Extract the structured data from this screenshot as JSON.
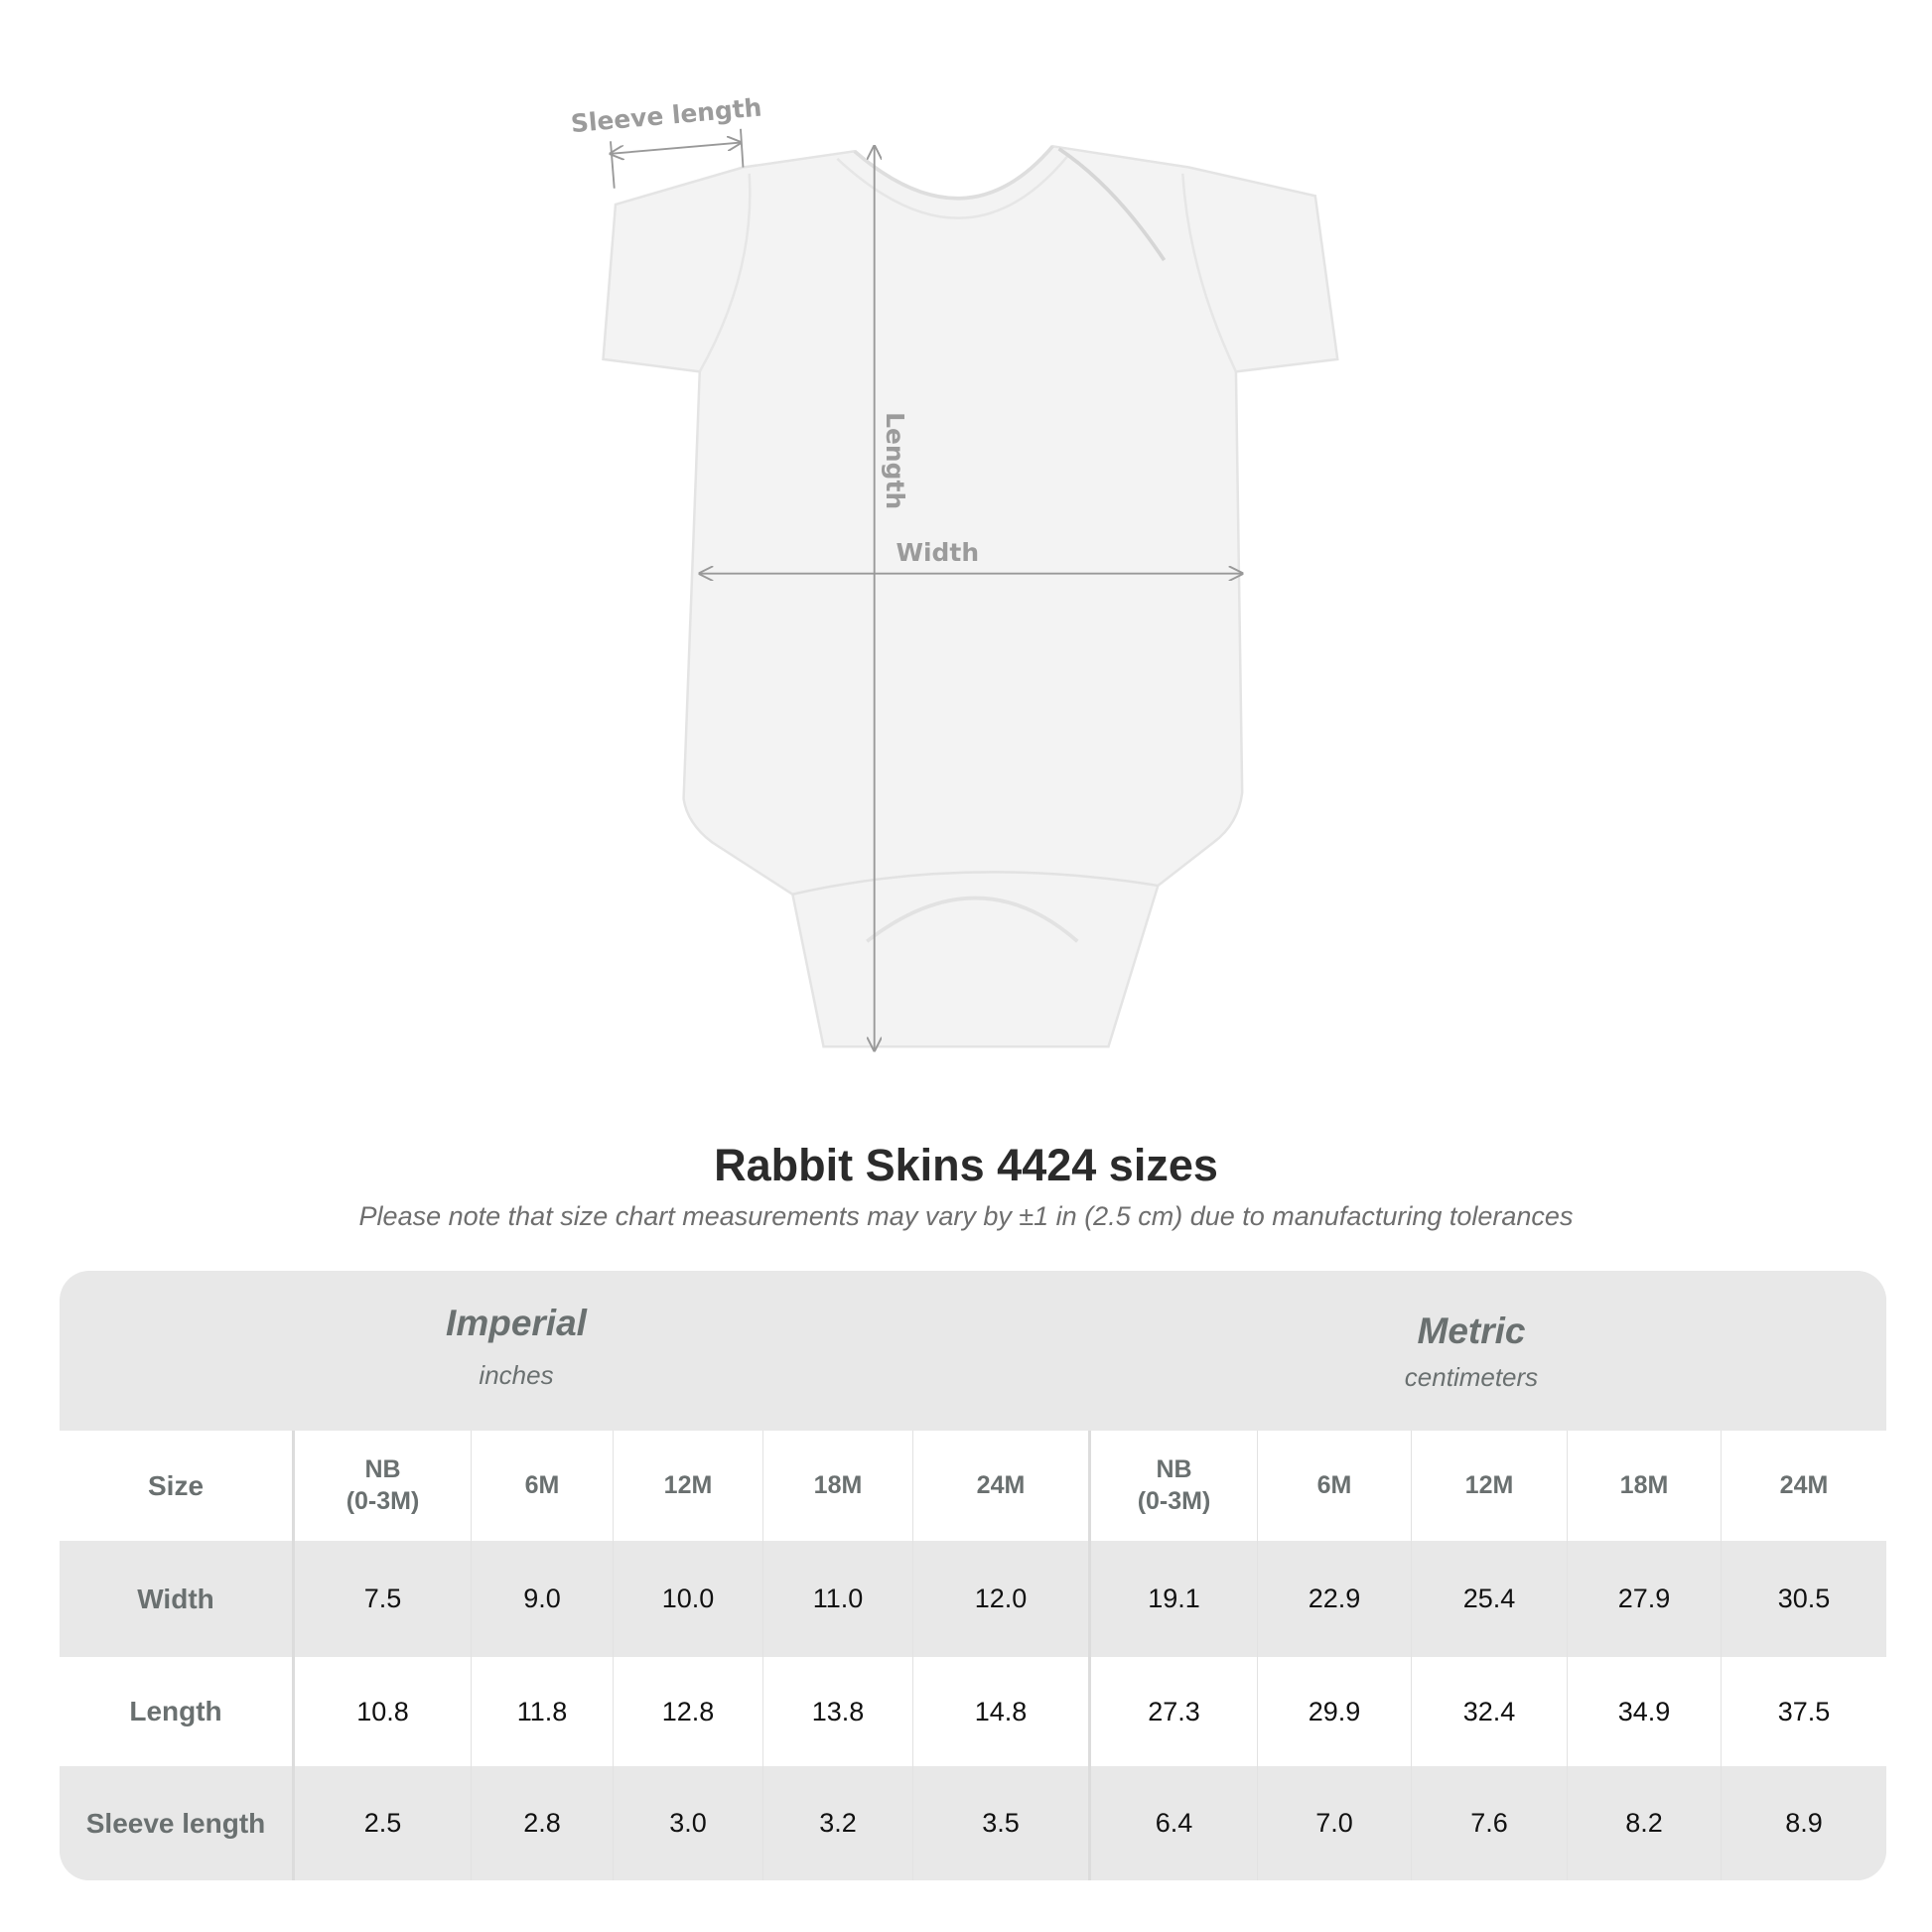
{
  "diagram": {
    "labels": {
      "sleeve_length": "Sleeve length",
      "length": "Length",
      "width": "Width"
    }
  },
  "title": "Rabbit Skins 4424 sizes",
  "note": "Please note that size chart measurements may vary by ±1 in (2.5 cm) due to manufacturing tolerances",
  "table": {
    "imperial": {
      "name": "Imperial",
      "unit": "inches"
    },
    "metric": {
      "name": "Metric",
      "unit": "centimeters"
    },
    "size_label": "Size",
    "sizes": [
      {
        "line1": "NB",
        "line2": "(0-3M)"
      },
      {
        "line1": "6M",
        "line2": ""
      },
      {
        "line1": "12M",
        "line2": ""
      },
      {
        "line1": "18M",
        "line2": ""
      },
      {
        "line1": "24M",
        "line2": ""
      }
    ],
    "rows": [
      {
        "label": "Width",
        "imperial": [
          "7.5",
          "9.0",
          "10.0",
          "11.0",
          "12.0"
        ],
        "metric": [
          "19.1",
          "22.9",
          "25.4",
          "27.9",
          "30.5"
        ]
      },
      {
        "label": "Length",
        "imperial": [
          "10.8",
          "11.8",
          "12.8",
          "13.8",
          "14.8"
        ],
        "metric": [
          "27.3",
          "29.9",
          "32.4",
          "34.9",
          "37.5"
        ]
      },
      {
        "label": "Sleeve length",
        "imperial": [
          "2.5",
          "2.8",
          "3.0",
          "3.2",
          "3.5"
        ],
        "metric": [
          "6.4",
          "7.0",
          "7.6",
          "8.2",
          "8.9"
        ]
      }
    ]
  },
  "colors": {
    "header_bg": "#e8e8e8",
    "header_text": "#6a7070",
    "diagram_text": "#9b9b9b"
  }
}
